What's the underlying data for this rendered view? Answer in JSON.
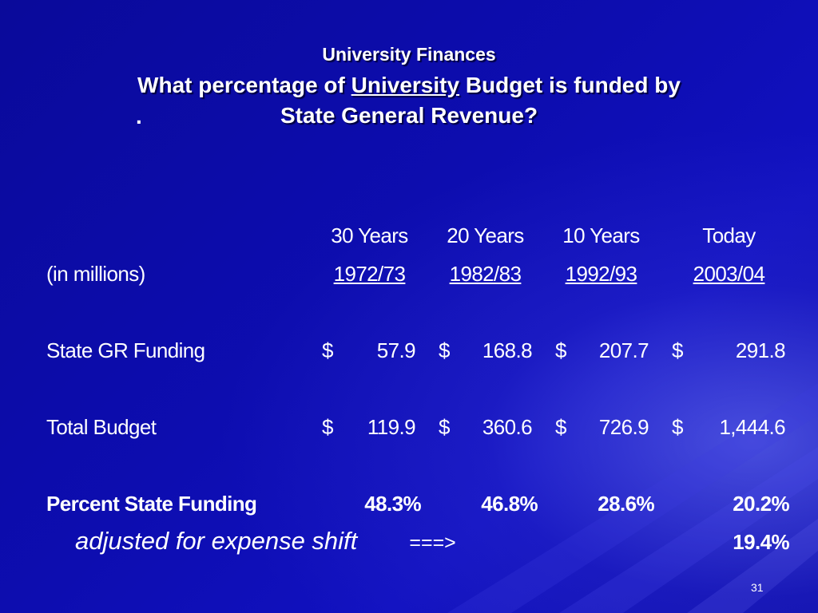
{
  "slide": {
    "heading": "University Finances",
    "question_before": "What percentage of ",
    "question_underlined": "University",
    "question_after": " Budget is funded by",
    "question_line2": "State General Revenue?",
    "stray_dot": ".",
    "page_number": "31"
  },
  "table": {
    "period_headers": [
      "30 Years",
      "20 Years",
      "10 Years",
      "Today"
    ],
    "units_label": "(in millions)",
    "years": [
      "1972/73",
      "1982/83",
      "1992/93",
      "2003/04"
    ],
    "currency_symbol": "$",
    "state_gr": {
      "label": "State GR Funding",
      "values": [
        "57.9",
        "168.8",
        "207.7",
        "291.8"
      ]
    },
    "total_budget": {
      "label": "Total Budget",
      "values": [
        "119.9",
        "360.6",
        "726.9",
        "1,444.6"
      ]
    },
    "percent_state": {
      "label": "Percent State Funding",
      "values": [
        "48.3%",
        "46.8%",
        "28.6%",
        "20.2%"
      ]
    },
    "adjusted": {
      "label": "adjusted for expense shift",
      "arrow": "===>",
      "value": "19.4%"
    }
  }
}
